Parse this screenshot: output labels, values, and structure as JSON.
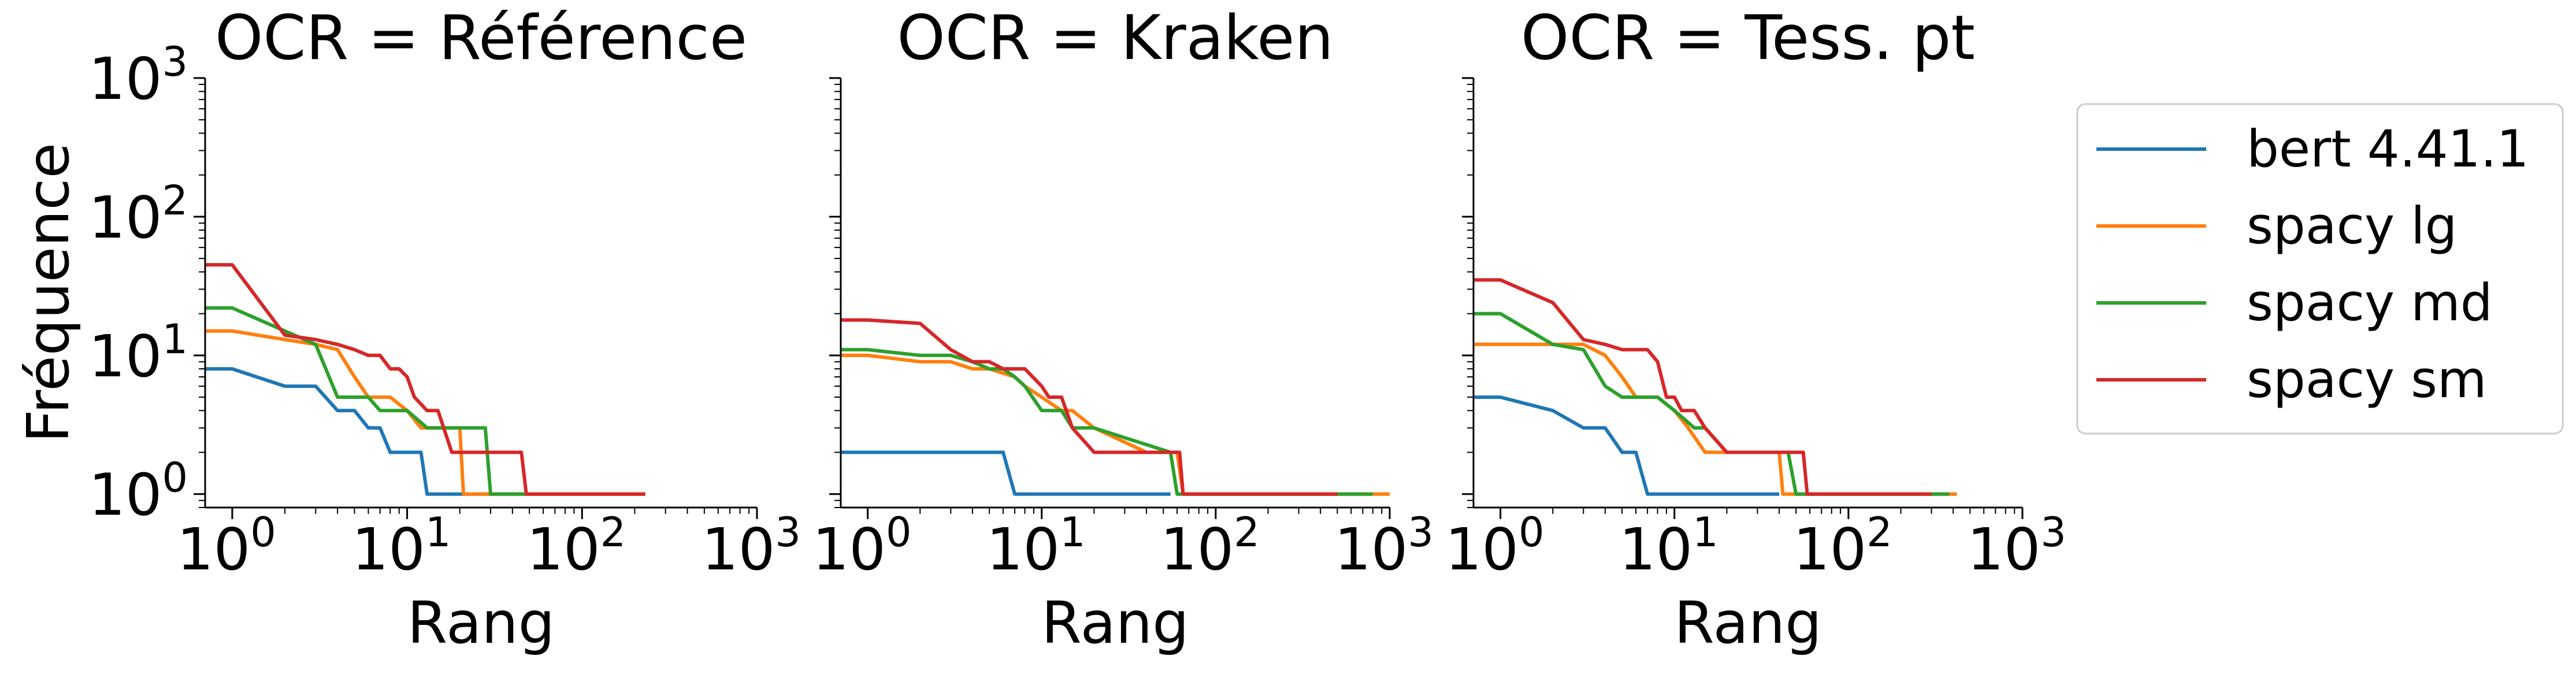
{
  "chart_data": {
    "type": "line",
    "xscale": "log",
    "yscale": "log",
    "xlim": [
      0.7,
      1000
    ],
    "ylim": [
      0.8,
      1000
    ],
    "xticks": [
      1,
      10,
      100,
      1000
    ],
    "xtick_labels": [
      "10^0",
      "10^1",
      "10^2",
      "10^3"
    ],
    "yticks": [
      1,
      10,
      100,
      1000
    ],
    "ytick_labels": [
      "10^0",
      "10^1",
      "10^2",
      "10^3"
    ],
    "ylabel": "Fréquence",
    "grid": false,
    "shared_y": true,
    "legend_position": "right",
    "legend": [
      "bert 4.41.1",
      "spacy lg",
      "spacy md",
      "spacy sm"
    ],
    "colors": [
      "#1f77b4",
      "#ff7f0e",
      "#2ca02c",
      "#d62728"
    ],
    "panels": [
      {
        "title": "OCR = Référence",
        "xlabel": "Rang",
        "series": [
          {
            "name": "bert 4.41.1",
            "x": [
              0.7,
              1,
              2,
              3,
              4,
              5,
              6,
              7,
              8,
              12,
              13,
              14,
              30
            ],
            "y": [
              8,
              8,
              6,
              6,
              4,
              4,
              3,
              3,
              2,
              2,
              1,
              1,
              1
            ]
          },
          {
            "name": "spacy lg",
            "x": [
              0.7,
              1,
              2,
              3,
              4,
              5,
              6,
              7,
              8,
              10,
              12,
              13,
              20,
              21,
              40,
              230
            ],
            "y": [
              15,
              15,
              13,
              12,
              11,
              7,
              5,
              5,
              5,
              4,
              3,
              3,
              3,
              1,
              1,
              1
            ]
          },
          {
            "name": "spacy md",
            "x": [
              0.7,
              1,
              2,
              3,
              4,
              5,
              6,
              7,
              10,
              13,
              15,
              28,
              30,
              32,
              48
            ],
            "y": [
              22,
              22,
              15,
              12,
              5,
              5,
              5,
              4,
              4,
              3,
              3,
              3,
              1,
              1,
              1
            ]
          },
          {
            "name": "spacy sm",
            "x": [
              0.7,
              1,
              2,
              3,
              4,
              5,
              6,
              7,
              8,
              9,
              10,
              11,
              13,
              15,
              18,
              20,
              22,
              25,
              45,
              48,
              230
            ],
            "y": [
              45,
              45,
              14,
              13,
              12,
              11,
              10,
              10,
              8,
              8,
              7,
              5,
              4,
              4,
              2,
              2,
              2,
              2,
              2,
              1,
              1
            ]
          }
        ]
      },
      {
        "title": "OCR = Kraken",
        "xlabel": "Rang",
        "series": [
          {
            "name": "bert 4.41.1",
            "x": [
              0.7,
              6,
              7,
              55
            ],
            "y": [
              2,
              2,
              1,
              1
            ]
          },
          {
            "name": "spacy lg",
            "x": [
              0.7,
              1,
              2,
              3,
              4,
              5,
              7,
              8,
              10,
              13,
              15,
              20,
              40,
              60,
              65,
              1000
            ],
            "y": [
              10,
              10,
              9,
              9,
              8,
              8,
              7,
              6,
              5,
              4,
              4,
              3,
              2,
              2,
              1,
              1
            ]
          },
          {
            "name": "spacy md",
            "x": [
              0.7,
              1,
              2,
              3,
              4,
              5,
              6,
              7,
              8,
              10,
              13,
              15,
              20,
              55,
              60,
              800
            ],
            "y": [
              11,
              11,
              10,
              10,
              9,
              8,
              8,
              7,
              6,
              4,
              4,
              3,
              3,
              2,
              1,
              1
            ]
          },
          {
            "name": "spacy sm",
            "x": [
              0.7,
              1,
              2,
              3,
              4,
              5,
              6,
              7,
              8,
              10,
              11,
              13,
              15,
              20,
              40,
              62,
              65,
              500
            ],
            "y": [
              18,
              18,
              17,
              11,
              9,
              9,
              8,
              8,
              8,
              6,
              5,
              5,
              3,
              2,
              2,
              2,
              1,
              1
            ]
          }
        ]
      },
      {
        "title": "OCR = Tess. pt",
        "xlabel": "Rang",
        "series": [
          {
            "name": "bert 4.41.1",
            "x": [
              0.7,
              1,
              2,
              3,
              4,
              5,
              6,
              7,
              8,
              40
            ],
            "y": [
              5,
              5,
              4,
              3,
              3,
              2,
              2,
              1,
              1,
              1
            ]
          },
          {
            "name": "spacy lg",
            "x": [
              0.7,
              1,
              2,
              3,
              4,
              5,
              6,
              8,
              10,
              12,
              15,
              20,
              40,
              42,
              45,
              420
            ],
            "y": [
              12,
              12,
              12,
              12,
              10,
              7,
              5,
              5,
              4,
              3,
              2,
              2,
              2,
              1,
              1,
              1
            ]
          },
          {
            "name": "spacy md",
            "x": [
              0.7,
              1,
              2,
              3,
              4,
              5,
              6,
              8,
              10,
              13,
              15,
              20,
              45,
              50,
              380
            ],
            "y": [
              20,
              20,
              12,
              11,
              6,
              5,
              5,
              5,
              4,
              3,
              3,
              2,
              2,
              1,
              1
            ]
          },
          {
            "name": "spacy sm",
            "x": [
              0.7,
              1,
              2,
              3,
              4,
              5,
              6,
              7,
              8,
              9,
              10,
              11,
              13,
              15,
              20,
              55,
              58,
              300
            ],
            "y": [
              35,
              35,
              24,
              13,
              12,
              11,
              11,
              11,
              9,
              5,
              5,
              4,
              4,
              3,
              2,
              2,
              1,
              1
            ]
          }
        ]
      }
    ]
  }
}
